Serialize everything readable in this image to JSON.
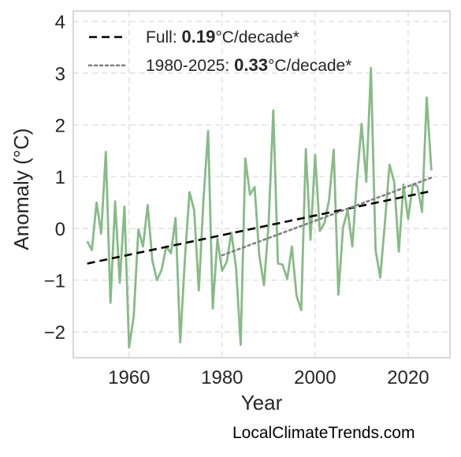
{
  "chart_data": {
    "type": "line",
    "title": "",
    "xlabel": "Year",
    "ylabel": "Anomaly (°C)",
    "xlim": [
      1948,
      2029
    ],
    "ylim": [
      -2.5,
      4.2
    ],
    "xticks": [
      1960,
      1980,
      2000,
      2020
    ],
    "yticks": [
      -2,
      -1,
      0,
      1,
      2,
      3,
      4
    ],
    "ytick_labels": [
      "−2",
      "−1",
      "0",
      "1",
      "2",
      "3",
      "4"
    ],
    "grid": true,
    "legend_position": "top-left",
    "series": [
      {
        "style": "solid",
        "color": "#86bb86",
        "x": [
          1951,
          1952,
          1953,
          1954,
          1955,
          1956,
          1957,
          1958,
          1959,
          1960,
          1961,
          1962,
          1963,
          1964,
          1965,
          1966,
          1967,
          1968,
          1969,
          1970,
          1971,
          1972,
          1973,
          1974,
          1975,
          1976,
          1977,
          1978,
          1979,
          1980,
          1981,
          1982,
          1983,
          1984,
          1985,
          1986,
          1987,
          1988,
          1989,
          1990,
          1991,
          1992,
          1993,
          1994,
          1995,
          1996,
          1997,
          1998,
          1999,
          2000,
          2001,
          2002,
          2003,
          2004,
          2005,
          2006,
          2007,
          2008,
          2009,
          2010,
          2011,
          2012,
          2013,
          2014,
          2015,
          2016,
          2017,
          2018,
          2019,
          2020,
          2021,
          2022,
          2023,
          2024,
          2025
        ],
        "values": [
          -0.25,
          -0.42,
          0.5,
          -0.1,
          1.48,
          -1.44,
          0.52,
          -1.05,
          0.42,
          -2.3,
          -1.7,
          -0.02,
          -0.35,
          0.45,
          -0.62,
          -1.0,
          -0.8,
          -0.35,
          -0.48,
          0.2,
          -2.2,
          -0.6,
          0.7,
          0.35,
          -1.2,
          0.55,
          1.88,
          -1.55,
          -0.2,
          -0.82,
          -0.65,
          -0.08,
          -0.75,
          -2.25,
          1.35,
          0.65,
          0.8,
          -0.52,
          -1.1,
          0.1,
          2.28,
          -0.68,
          -0.7,
          -0.98,
          -0.35,
          -1.3,
          -1.58,
          1.53,
          -0.22,
          1.42,
          -0.05,
          0.1,
          0.55,
          1.52,
          -1.28,
          0.02,
          0.35,
          -0.35,
          0.95,
          2.02,
          0.9,
          3.1,
          -0.42,
          -0.95,
          0.1,
          1.23,
          0.9,
          -0.45,
          0.85,
          0.18,
          0.85,
          0.82,
          0.32,
          2.53,
          1.12
        ]
      },
      {
        "name": "Full: 0.19°C/decade*",
        "style": "dashed",
        "color": "#000000",
        "x": [
          1951,
          2025
        ],
        "values": [
          -0.68,
          0.72
        ]
      },
      {
        "name": "1980-2025: 0.33°C/decade*",
        "style": "dotted",
        "color": "#808080",
        "x": [
          1980,
          2025
        ],
        "values": [
          -0.52,
          0.98
        ]
      }
    ],
    "legend": [
      {
        "prefix": "Full: ",
        "value": "0.19",
        "suffix": "°C/decade*",
        "style": "dashed",
        "color": "#000000"
      },
      {
        "prefix": "1980-2025: ",
        "value": "0.33",
        "suffix": "°C/decade*",
        "style": "dotted",
        "color": "#808080"
      }
    ]
  },
  "watermark": "LocalClimateTrends.com"
}
